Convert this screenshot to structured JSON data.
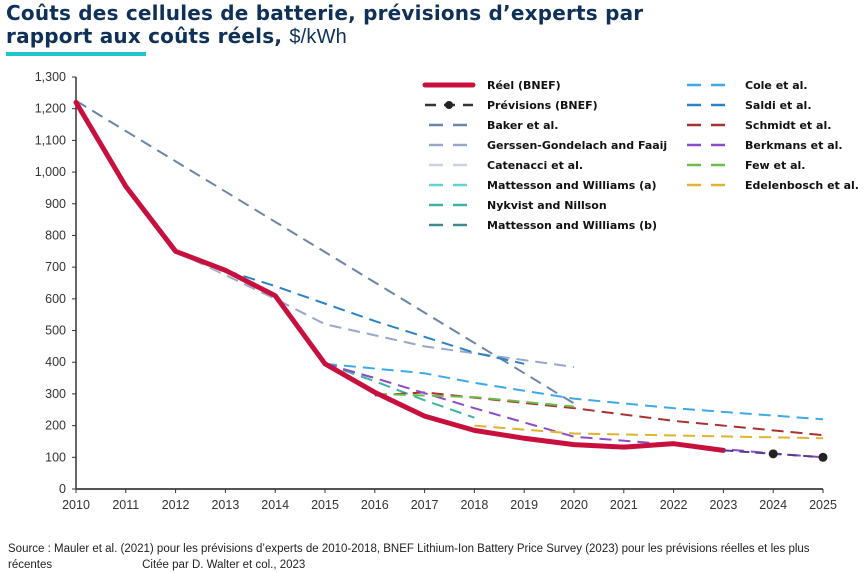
{
  "header": {
    "title_line1": "Coûts des cellules de batterie, prévisions d’experts par",
    "title_line2": "rapport aux coûts réels,",
    "title_unit": "$/kWh"
  },
  "footer": {
    "source": "Source : Mauler et al. (2021) pour les prévisions d’experts de 2010-2018, BNEF Lithium-Ion Battery Price Survey (2023) pour les prévisions réelles et les plus récentes",
    "citation": "Citée par D. Walter et col., 2023"
  },
  "chart_data": {
    "type": "line",
    "title": "Coûts des cellules de batterie, prévisions d’experts par rapport aux coûts réels, $/kWh",
    "xlabel": "",
    "ylabel": "$/kWh",
    "xlim": [
      2010,
      2025
    ],
    "ylim": [
      0,
      1300
    ],
    "x_ticks": [
      2010,
      2011,
      2012,
      2013,
      2014,
      2015,
      2016,
      2017,
      2018,
      2019,
      2020,
      2021,
      2022,
      2023,
      2024,
      2025
    ],
    "y_ticks": [
      0,
      100,
      200,
      300,
      400,
      500,
      600,
      700,
      800,
      900,
      1000,
      1100,
      1200,
      1300
    ],
    "y_tick_labels": [
      "0",
      "100",
      "200",
      "300",
      "400",
      "500",
      "600",
      "700",
      "800",
      "900",
      "1,000",
      "1,100",
      "1,200",
      "1,300"
    ],
    "grid": false,
    "legend_placement": "top-right",
    "series": [
      {
        "name": "Réel (BNEF)",
        "color": "#c8103e",
        "style": "solid-thick",
        "points": [
          [
            2010,
            1220
          ],
          [
            2011,
            955
          ],
          [
            2012,
            750
          ],
          [
            2013,
            690
          ],
          [
            2014,
            610
          ],
          [
            2015,
            395
          ],
          [
            2016,
            305
          ],
          [
            2017,
            230
          ],
          [
            2018,
            185
          ],
          [
            2019,
            160
          ],
          [
            2020,
            140
          ],
          [
            2021,
            132
          ],
          [
            2022,
            143
          ],
          [
            2023,
            122
          ]
        ]
      },
      {
        "name": "Prévisions (BNEF)",
        "color": "#222222",
        "style": "dash-dot-marker",
        "points": [
          [
            2023,
            122
          ],
          [
            2024,
            111
          ],
          [
            2025,
            100
          ]
        ]
      },
      {
        "name": "Baker et al.",
        "color": "#6b84a8",
        "style": "dash",
        "points": [
          [
            2010,
            1225
          ],
          [
            2020,
            270
          ]
        ]
      },
      {
        "name": "Gerssen-Gondelach and Faaij",
        "color": "#98a8c8",
        "style": "dash",
        "points": [
          [
            2012,
            750
          ],
          [
            2014,
            600
          ],
          [
            2015,
            520
          ],
          [
            2017,
            450
          ],
          [
            2020,
            385
          ]
        ]
      },
      {
        "name": "Catenacci et al.",
        "color": "#c8d2e0",
        "style": "dash",
        "points": [
          [
            2012,
            750
          ],
          [
            2013,
            680
          ]
        ]
      },
      {
        "name": "Mattesson and Williams (a)",
        "color": "#62d2d2",
        "style": "dash",
        "points": [
          [
            2015,
            395
          ],
          [
            2016,
            350
          ]
        ]
      },
      {
        "name": "Nykvist and Nillson",
        "color": "#3cb4a4",
        "style": "dash",
        "points": [
          [
            2015,
            395
          ],
          [
            2016,
            340
          ],
          [
            2017,
            280
          ],
          [
            2018,
            225
          ]
        ]
      },
      {
        "name": "Mattesson and Williams (b)",
        "color": "#3c8a8a",
        "style": "dash",
        "points": [
          [
            2015,
            395
          ],
          [
            2016,
            350
          ]
        ]
      },
      {
        "name": "Cole et al.",
        "color": "#3caae8",
        "style": "dash",
        "points": [
          [
            2015,
            395
          ],
          [
            2017,
            365
          ],
          [
            2018,
            335
          ],
          [
            2020,
            285
          ],
          [
            2022,
            255
          ],
          [
            2025,
            220
          ]
        ]
      },
      {
        "name": "Saldi et al.",
        "color": "#2a82c8",
        "style": "dash",
        "points": [
          [
            2013,
            690
          ],
          [
            2014,
            640
          ],
          [
            2016,
            530
          ],
          [
            2018,
            430
          ],
          [
            2019,
            395
          ]
        ]
      },
      {
        "name": "Schmidt et al.",
        "color": "#a83232",
        "style": "dash",
        "points": [
          [
            2016,
            295
          ],
          [
            2017,
            305
          ],
          [
            2020,
            255
          ],
          [
            2022,
            215
          ],
          [
            2025,
            170
          ]
        ]
      },
      {
        "name": "Berkmans et al.",
        "color": "#8c4cc8",
        "style": "dash",
        "points": [
          [
            2015,
            395
          ],
          [
            2016,
            350
          ],
          [
            2018,
            255
          ],
          [
            2020,
            165
          ],
          [
            2022,
            140
          ],
          [
            2024,
            112
          ],
          [
            2025,
            100
          ]
        ]
      },
      {
        "name": "Few et al.",
        "color": "#6cbc4c",
        "style": "dash",
        "points": [
          [
            2016,
            300
          ],
          [
            2018,
            290
          ],
          [
            2020,
            260
          ]
        ]
      },
      {
        "name": "Edelenbosch et al.",
        "color": "#e0b430",
        "style": "dash",
        "points": [
          [
            2018,
            200
          ],
          [
            2020,
            175
          ],
          [
            2025,
            160
          ]
        ]
      }
    ]
  }
}
